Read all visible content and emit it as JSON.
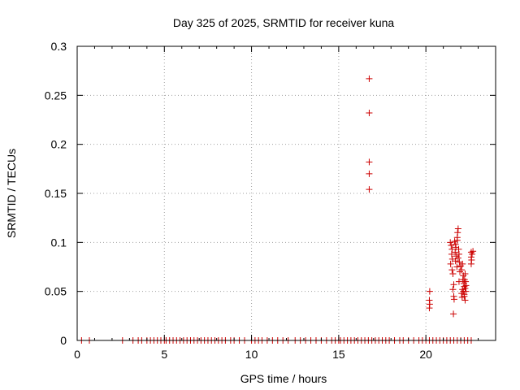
{
  "chart_data": {
    "type": "scatter",
    "title": "Day 325 of 2025, SRMTID for receiver kuna",
    "xlabel": "GPS time / hours",
    "ylabel": "SRMTID / TECUs",
    "xlim": [
      0,
      24
    ],
    "ylim": [
      0,
      0.3
    ],
    "x_ticks": [
      0,
      5,
      10,
      15,
      20
    ],
    "x_tick_labels": [
      "0",
      "5",
      "10",
      "15",
      "20"
    ],
    "y_ticks": [
      0,
      0.05,
      0.1,
      0.15,
      0.2,
      0.25,
      0.3
    ],
    "y_tick_labels": [
      "0",
      "0.05",
      "0.1",
      "0.15",
      "0.2",
      "0.25",
      "0.3"
    ],
    "grid": true,
    "marker": "+",
    "marker_color": "#cc0000",
    "series": [
      {
        "name": "SRMTID",
        "points": [
          [
            0.25,
            0
          ],
          [
            0.7,
            0
          ],
          [
            2.6,
            0
          ],
          [
            3.2,
            0
          ],
          [
            3.5,
            0
          ],
          [
            3.7,
            0
          ],
          [
            4.0,
            0
          ],
          [
            4.2,
            0
          ],
          [
            4.4,
            0
          ],
          [
            4.6,
            0
          ],
          [
            4.8,
            0
          ],
          [
            5.0,
            0
          ],
          [
            5.1,
            0
          ],
          [
            5.3,
            0
          ],
          [
            5.5,
            0
          ],
          [
            5.7,
            0
          ],
          [
            5.9,
            0
          ],
          [
            6.1,
            0
          ],
          [
            6.3,
            0
          ],
          [
            6.5,
            0
          ],
          [
            6.7,
            0
          ],
          [
            6.9,
            0
          ],
          [
            7.1,
            0
          ],
          [
            7.3,
            0
          ],
          [
            7.5,
            0
          ],
          [
            7.7,
            0
          ],
          [
            7.9,
            0
          ],
          [
            8.1,
            0
          ],
          [
            8.3,
            0
          ],
          [
            8.5,
            0
          ],
          [
            8.8,
            0
          ],
          [
            9.0,
            0
          ],
          [
            9.3,
            0
          ],
          [
            9.6,
            0
          ],
          [
            10.0,
            0
          ],
          [
            10.2,
            0
          ],
          [
            10.4,
            0
          ],
          [
            10.6,
            0
          ],
          [
            10.9,
            0
          ],
          [
            11.2,
            0
          ],
          [
            11.5,
            0
          ],
          [
            11.8,
            0
          ],
          [
            12.1,
            0
          ],
          [
            12.5,
            0
          ],
          [
            12.8,
            0
          ],
          [
            13.1,
            0
          ],
          [
            13.4,
            0
          ],
          [
            13.7,
            0
          ],
          [
            14.0,
            0
          ],
          [
            14.3,
            0
          ],
          [
            14.6,
            0
          ],
          [
            14.8,
            0
          ],
          [
            15.0,
            0
          ],
          [
            15.1,
            0
          ],
          [
            15.3,
            0
          ],
          [
            15.5,
            0
          ],
          [
            15.7,
            0
          ],
          [
            15.9,
            0
          ],
          [
            16.1,
            0
          ],
          [
            16.3,
            0
          ],
          [
            16.5,
            0
          ],
          [
            16.7,
            0
          ],
          [
            16.9,
            0
          ],
          [
            17.1,
            0
          ],
          [
            17.3,
            0
          ],
          [
            17.5,
            0
          ],
          [
            17.7,
            0
          ],
          [
            17.9,
            0
          ],
          [
            18.2,
            0
          ],
          [
            18.5,
            0
          ],
          [
            18.7,
            0
          ],
          [
            19.0,
            0
          ],
          [
            19.3,
            0
          ],
          [
            19.6,
            0
          ],
          [
            19.8,
            0
          ],
          [
            20.0,
            0
          ],
          [
            20.2,
            0
          ],
          [
            20.4,
            0
          ],
          [
            20.6,
            0
          ],
          [
            20.8,
            0
          ],
          [
            21.0,
            0
          ],
          [
            21.2,
            0
          ],
          [
            21.4,
            0
          ],
          [
            21.6,
            0
          ],
          [
            21.8,
            0
          ],
          [
            22.0,
            0
          ],
          [
            22.2,
            0
          ],
          [
            22.4,
            0
          ],
          [
            22.6,
            0
          ],
          [
            16.75,
            0.267
          ],
          [
            16.75,
            0.232
          ],
          [
            16.75,
            0.182
          ],
          [
            16.75,
            0.17
          ],
          [
            16.75,
            0.154
          ],
          [
            20.22,
            0.05
          ],
          [
            20.2,
            0.041
          ],
          [
            20.22,
            0.037
          ],
          [
            20.2,
            0.033
          ],
          [
            21.4,
            0.1
          ],
          [
            21.45,
            0.097
          ],
          [
            21.5,
            0.093
          ],
          [
            21.48,
            0.088
          ],
          [
            21.52,
            0.083
          ],
          [
            21.42,
            0.078
          ],
          [
            21.5,
            0.072
          ],
          [
            21.55,
            0.068
          ],
          [
            21.6,
            0.057
          ],
          [
            21.55,
            0.052
          ],
          [
            21.6,
            0.045
          ],
          [
            21.62,
            0.042
          ],
          [
            21.58,
            0.027
          ],
          [
            21.65,
            0.101
          ],
          [
            21.7,
            0.098
          ],
          [
            21.72,
            0.095
          ],
          [
            21.68,
            0.09
          ],
          [
            21.75,
            0.086
          ],
          [
            21.7,
            0.081
          ],
          [
            21.78,
            0.075
          ],
          [
            21.8,
            0.105
          ],
          [
            21.82,
            0.11
          ],
          [
            21.85,
            0.114
          ],
          [
            21.8,
            0.102
          ],
          [
            21.88,
            0.093
          ],
          [
            21.9,
            0.088
          ],
          [
            21.85,
            0.084
          ],
          [
            21.92,
            0.08
          ],
          [
            21.95,
            0.07
          ],
          [
            21.9,
            0.06
          ],
          [
            22.0,
            0.076
          ],
          [
            22.05,
            0.072
          ],
          [
            22.1,
            0.078
          ],
          [
            22.15,
            0.066
          ],
          [
            22.12,
            0.062
          ],
          [
            22.18,
            0.058
          ],
          [
            22.2,
            0.055
          ],
          [
            22.1,
            0.052
          ],
          [
            22.15,
            0.05
          ],
          [
            22.2,
            0.047
          ],
          [
            22.22,
            0.062
          ],
          [
            22.25,
            0.068
          ],
          [
            22.28,
            0.06
          ],
          [
            22.3,
            0.056
          ],
          [
            22.25,
            0.053
          ],
          [
            22.3,
            0.05
          ],
          [
            22.2,
            0.045
          ],
          [
            22.25,
            0.041
          ],
          [
            22.05,
            0.048
          ],
          [
            22.08,
            0.044
          ],
          [
            22.6,
            0.09
          ],
          [
            22.65,
            0.088
          ],
          [
            22.6,
            0.085
          ],
          [
            22.62,
            0.082
          ],
          [
            22.6,
            0.078
          ],
          [
            22.7,
            0.091
          ]
        ]
      }
    ]
  }
}
